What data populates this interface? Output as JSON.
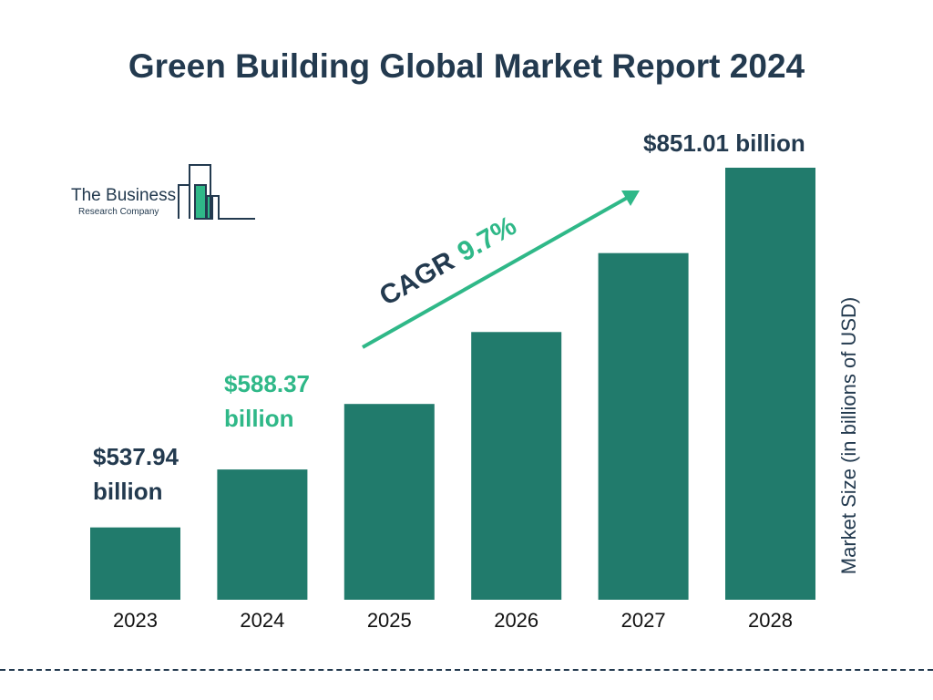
{
  "chart_data": {
    "type": "bar",
    "title": "Green Building Global Market Report 2024",
    "categories": [
      "2023",
      "2024",
      "2025",
      "2026",
      "2027",
      "2028"
    ],
    "values": [
      537.94,
      588.37,
      645.4,
      708.0,
      776.7,
      851.01
    ],
    "data_labels": {
      "2023": "$537.94 billion",
      "2024": "$588.37 billion",
      "2028": "$851.01 billion"
    },
    "xlabel": "",
    "ylabel": "Market Size (in billions of USD)",
    "annotation": {
      "label": "CAGR",
      "value": "9.7%"
    },
    "grid": false,
    "colors": {
      "bar": "#217b6c",
      "title": "#233a4f",
      "highlight": "#2fb888"
    }
  },
  "logo": {
    "line1": "The Business",
    "line2": "Research Company"
  }
}
